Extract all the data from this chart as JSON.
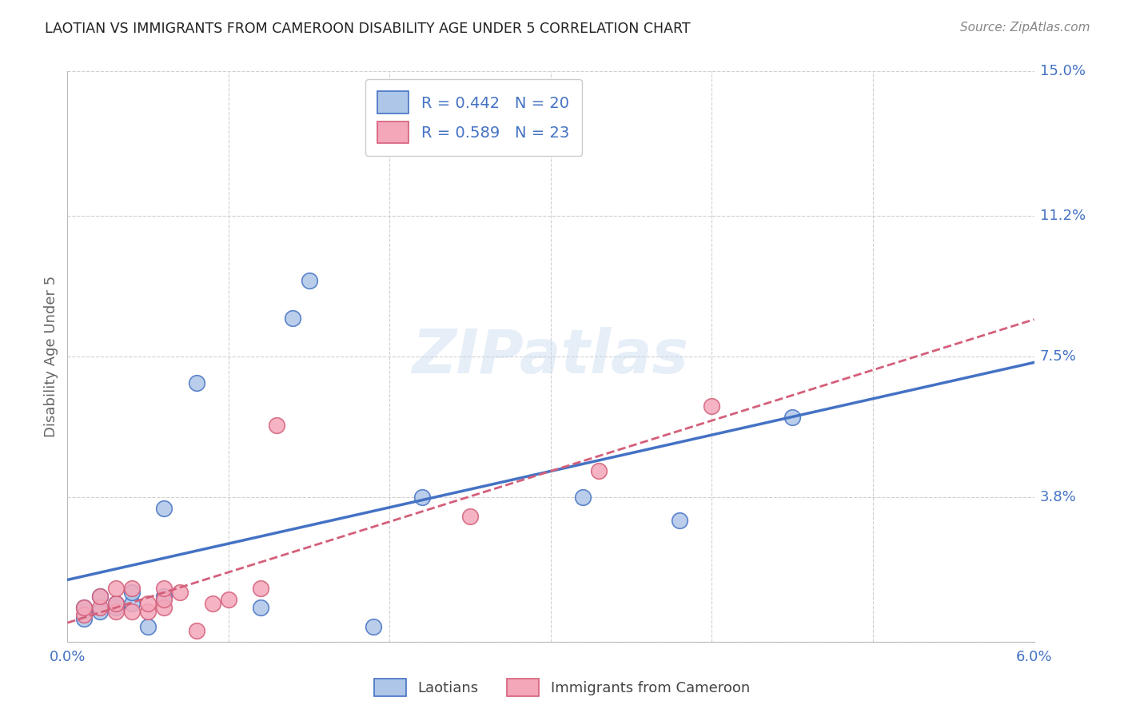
{
  "title": "LAOTIAN VS IMMIGRANTS FROM CAMEROON DISABILITY AGE UNDER 5 CORRELATION CHART",
  "source": "Source: ZipAtlas.com",
  "ylabel": "Disability Age Under 5",
  "watermark": "ZIPatlas",
  "xlim": [
    0.0,
    0.06
  ],
  "ylim": [
    0.0,
    0.15
  ],
  "xticks": [
    0.0,
    0.01,
    0.02,
    0.03,
    0.04,
    0.05,
    0.06
  ],
  "ytick_positions": [
    0.0,
    0.038,
    0.075,
    0.112,
    0.15
  ],
  "yticklabels": [
    "",
    "3.8%",
    "7.5%",
    "11.2%",
    "15.0%"
  ],
  "laotian_R": 0.442,
  "laotian_N": 20,
  "cameroon_R": 0.589,
  "cameroon_N": 23,
  "laotian_color": "#aec6e8",
  "laotian_line_color": "#4472c4",
  "cameroon_color": "#f4a7b9",
  "cameroon_line_color": "#d45f7a",
  "laotian_x": [
    0.001,
    0.001,
    0.002,
    0.002,
    0.003,
    0.003,
    0.004,
    0.004,
    0.005,
    0.006,
    0.006,
    0.008,
    0.012,
    0.014,
    0.015,
    0.019,
    0.022,
    0.032,
    0.038,
    0.045
  ],
  "laotian_y": [
    0.006,
    0.009,
    0.008,
    0.012,
    0.009,
    0.01,
    0.01,
    0.013,
    0.004,
    0.012,
    0.035,
    0.068,
    0.009,
    0.085,
    0.095,
    0.004,
    0.038,
    0.038,
    0.032,
    0.059
  ],
  "cameroon_x": [
    0.001,
    0.001,
    0.002,
    0.002,
    0.003,
    0.003,
    0.003,
    0.004,
    0.004,
    0.005,
    0.005,
    0.006,
    0.006,
    0.006,
    0.007,
    0.008,
    0.009,
    0.01,
    0.012,
    0.013,
    0.025,
    0.033,
    0.04
  ],
  "cameroon_y": [
    0.007,
    0.009,
    0.009,
    0.012,
    0.008,
    0.01,
    0.014,
    0.008,
    0.014,
    0.008,
    0.01,
    0.009,
    0.011,
    0.014,
    0.013,
    0.003,
    0.01,
    0.011,
    0.014,
    0.057,
    0.033,
    0.045,
    0.062
  ],
  "grid_color": "#d0d0d0",
  "background_color": "#ffffff",
  "tick_color": "#4472c4",
  "axis_label_color": "#666666",
  "title_color": "#222222"
}
